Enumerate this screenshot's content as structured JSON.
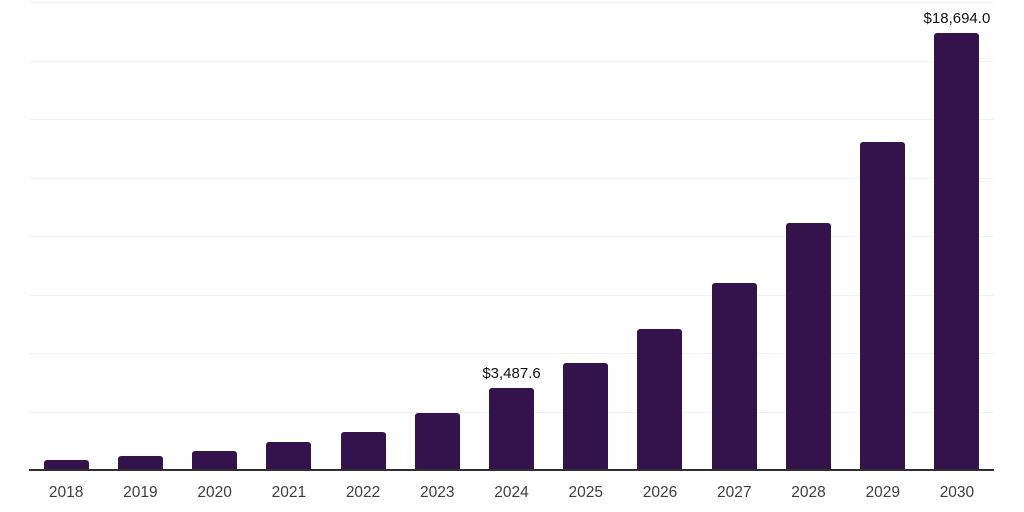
{
  "chart_data": {
    "type": "bar",
    "title": "",
    "xlabel": "",
    "ylabel": "",
    "categories": [
      "2018",
      "2019",
      "2020",
      "2021",
      "2022",
      "2023",
      "2024",
      "2025",
      "2026",
      "2027",
      "2028",
      "2029",
      "2030"
    ],
    "values": [
      430,
      590,
      810,
      1200,
      1640,
      2450,
      3487.6,
      4580,
      6010,
      8010,
      10550,
      14020,
      18694
    ],
    "data_labels": {
      "2024": "$3,487.6",
      "2030": "$18,694.0"
    },
    "ylim": [
      0,
      20000
    ],
    "gridline_step": 2500,
    "grid": true,
    "legend": "none",
    "y_axis_labels_visible": false
  },
  "colors": {
    "bar": "#34134d",
    "gridline": "#f2f2f2",
    "axis_line": "#2f2f2f",
    "tick_label": "#3d3d3d",
    "data_label": "#111111",
    "background": "#ffffff"
  }
}
